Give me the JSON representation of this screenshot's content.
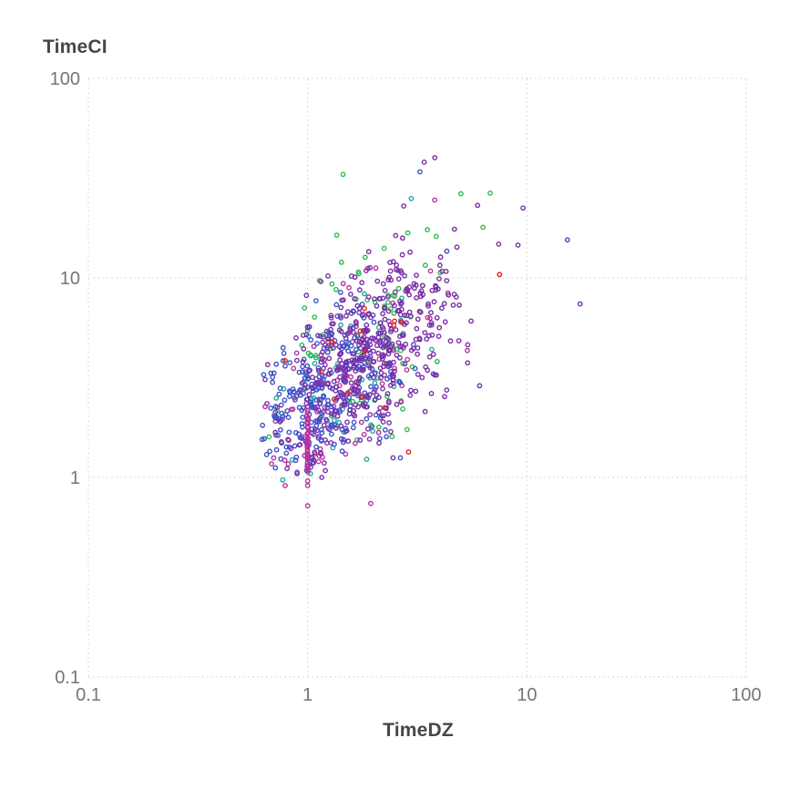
{
  "chart_data": {
    "type": "scatter",
    "title": "",
    "xlabel": "TimeDZ",
    "ylabel": "TimeCI",
    "x_scale": "log10",
    "y_scale": "log10",
    "xlim": [
      0.1,
      100
    ],
    "ylim": [
      0.1,
      100
    ],
    "x_ticks": [
      0.1,
      1,
      10,
      100
    ],
    "y_ticks": [
      100,
      10,
      1,
      0.1
    ],
    "x_tick_labels": [
      "0.1",
      "1",
      "10",
      "100"
    ],
    "y_tick_labels": [
      "100",
      "10",
      "1",
      "0.1"
    ],
    "grid": {
      "style": "dashed",
      "color": "#d9d9d9",
      "border": "dashed"
    },
    "legend": "none",
    "background": "#ffffff",
    "tick_label_color": "#757575",
    "axis_title_color": "#474747",
    "marker": {
      "shape": "open-circle",
      "radius": 2.2,
      "stroke_width": 1.4
    },
    "seed": 1337,
    "series": [
      {
        "name": "purple",
        "color": "#7a2fa9",
        "n": 430,
        "mean_log": [
          0.3,
          0.62
        ],
        "sd_log": [
          0.2,
          0.25
        ],
        "rho": 0.5
      },
      {
        "name": "blue",
        "color": "#3b51cc",
        "n": 265,
        "mean_log": [
          0.08,
          0.4
        ],
        "sd_log": [
          0.17,
          0.22
        ],
        "rho": 0.55
      },
      {
        "name": "magenta",
        "color": "#b8309f",
        "n": 105,
        "mean_log": [
          0.12,
          0.42
        ],
        "sd_log": [
          0.19,
          0.26
        ],
        "rho": 0.5
      },
      {
        "name": "green",
        "color": "#2ebd4f",
        "n": 72,
        "mean_log": [
          0.27,
          0.7
        ],
        "sd_log": [
          0.21,
          0.27
        ],
        "rho": 0.45
      },
      {
        "name": "teal",
        "color": "#22a8a0",
        "n": 62,
        "mean_log": [
          0.17,
          0.5
        ],
        "sd_log": [
          0.17,
          0.23
        ],
        "rho": 0.5
      },
      {
        "name": "red",
        "color": "#e02222",
        "n": 13,
        "mean_log": [
          0.26,
          0.56
        ],
        "sd_log": [
          0.23,
          0.21
        ],
        "rho": 0.4
      }
    ],
    "bounds_log": {
      "x": [
        -0.21,
        1.0
      ],
      "y": [
        0.01,
        1.45
      ]
    },
    "vertical_streak": {
      "series": "magenta",
      "x": 1.0,
      "n": 46,
      "y_log_range": [
        0.02,
        0.345
      ]
    },
    "notable_points": [
      {
        "x": 3.4,
        "y": 38,
        "series": "purple"
      },
      {
        "x": 3.8,
        "y": 40,
        "series": "purple"
      },
      {
        "x": 1.45,
        "y": 33,
        "series": "green"
      },
      {
        "x": 3.25,
        "y": 34,
        "series": "blue"
      },
      {
        "x": 2.97,
        "y": 25,
        "series": "teal"
      },
      {
        "x": 5.0,
        "y": 26.4,
        "series": "green"
      },
      {
        "x": 6.8,
        "y": 26.6,
        "series": "green"
      },
      {
        "x": 9.6,
        "y": 22.4,
        "series": "purple"
      },
      {
        "x": 9.1,
        "y": 14.6,
        "series": "purple"
      },
      {
        "x": 15.3,
        "y": 15.5,
        "series": "purple"
      },
      {
        "x": 17.5,
        "y": 7.4,
        "series": "purple"
      },
      {
        "x": 7.5,
        "y": 10.4,
        "series": "red"
      },
      {
        "x": 0.79,
        "y": 3.85,
        "series": "red"
      },
      {
        "x": 0.62,
        "y": 1.55,
        "series": "blue"
      },
      {
        "x": 0.65,
        "y": 1.3,
        "series": "blue"
      },
      {
        "x": 0.77,
        "y": 0.97,
        "series": "teal"
      },
      {
        "x": 0.79,
        "y": 0.91,
        "series": "magenta"
      },
      {
        "x": 1.0,
        "y": 0.96,
        "series": "magenta"
      },
      {
        "x": 1.0,
        "y": 0.91,
        "series": "magenta"
      },
      {
        "x": 1.0,
        "y": 0.72,
        "series": "magenta"
      },
      {
        "x": 1.94,
        "y": 0.74,
        "series": "magenta"
      },
      {
        "x": 1.16,
        "y": 1.0,
        "series": "purple"
      }
    ]
  }
}
